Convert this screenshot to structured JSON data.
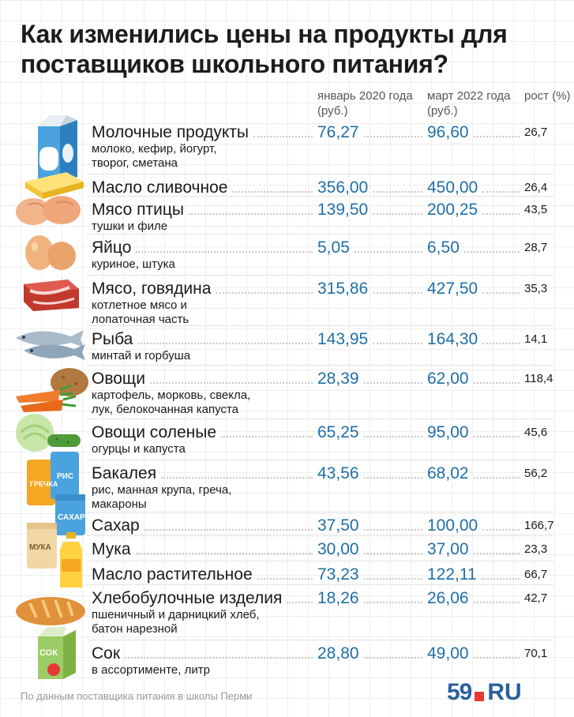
{
  "title": "Как изменились цены на продукты для поставщиков школьного питания?",
  "columns": {
    "jan2020": "январь 2020 года (руб.)",
    "mar2022": "март 2022 года (руб.)",
    "growth": "рост (%)"
  },
  "footer": "По данным поставщика питания в школы Перми",
  "logo": {
    "number": "59",
    "suffix": "RU"
  },
  "colors": {
    "value": "#1f6fa8",
    "logo": "#2b5f9e",
    "logo_mark": "#e53935"
  },
  "chart_data": {
    "type": "table",
    "columns": [
      "январь 2020 года (руб.)",
      "март 2022 года (руб.)",
      "рост (%)"
    ],
    "rows": [
      {
        "name": "Молочные продукты",
        "sub": "молоко, кефир, йогурт, творог, сметана",
        "icon": "milk-carton-icon",
        "jan2020": "76,27",
        "mar2022": "96,60",
        "growth": "26,7"
      },
      {
        "name": "Масло сливочное",
        "sub": "",
        "icon": "butter-icon",
        "jan2020": "356,00",
        "mar2022": "450,00",
        "growth": "26,4"
      },
      {
        "name": "Мясо птицы",
        "sub": "тушки и филе",
        "icon": "chicken-icon",
        "jan2020": "139,50",
        "mar2022": "200,25",
        "growth": "43,5"
      },
      {
        "name": "Яйцо",
        "sub": "куриное, штука",
        "icon": "eggs-icon",
        "jan2020": "5,05",
        "mar2022": "6,50",
        "growth": "28,7"
      },
      {
        "name": "Мясо, говядина",
        "sub": "котлетное мясо и лопаточная часть",
        "icon": "beef-icon",
        "jan2020": "315,86",
        "mar2022": "427,50",
        "growth": "35,3"
      },
      {
        "name": "Рыба",
        "sub": "минтай и горбуша",
        "icon": "fish-icon",
        "jan2020": "143,95",
        "mar2022": "164,30",
        "growth": "14,1"
      },
      {
        "name": "Овощи",
        "sub": "картофель, морковь, свекла, лук, белокочанная капуста",
        "icon": "vegetables-icon",
        "jan2020": "28,39",
        "mar2022": "62,00",
        "growth": "118,4"
      },
      {
        "name": "Овощи соленые",
        "sub": "огурцы и капуста",
        "icon": "pickles-icon",
        "jan2020": "65,25",
        "mar2022": "95,00",
        "growth": "45,6"
      },
      {
        "name": "Бакалея",
        "sub": "рис, манная крупа, греча, макароны",
        "icon": "grocery-bags-icon",
        "jan2020": "43,56",
        "mar2022": "68,02",
        "growth": "56,2"
      },
      {
        "name": "Сахар",
        "sub": "",
        "icon": "sugar-icon",
        "jan2020": "37,50",
        "mar2022": "100,00",
        "growth": "166,7"
      },
      {
        "name": "Мука",
        "sub": "",
        "icon": "flour-icon",
        "jan2020": "30,00",
        "mar2022": "37,00",
        "growth": "23,3"
      },
      {
        "name": "Масло растительное",
        "sub": "",
        "icon": "oil-bottle-icon",
        "jan2020": "73,23",
        "mar2022": "122,11",
        "growth": "66,7"
      },
      {
        "name": "Хлебобулочные изделия",
        "sub": "пшеничный и дарницкий хлеб, батон нарезной",
        "icon": "bread-icon",
        "jan2020": "18,26",
        "mar2022": "26,06",
        "growth": "42,7"
      },
      {
        "name": "Сок",
        "sub": "в ассортименте, литр",
        "icon": "juice-icon",
        "jan2020": "28,80",
        "mar2022": "49,00",
        "growth": "70,1"
      }
    ],
    "icon_labels": {
      "grocery": [
        "ГРЕЧКА",
        "РИС"
      ],
      "sugar": "САХАР",
      "flour": "МУКА",
      "juice": "СОК"
    }
  }
}
